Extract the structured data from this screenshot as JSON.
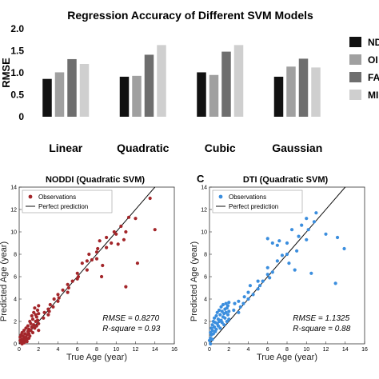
{
  "chart_data": [
    {
      "type": "bar",
      "title": "Regression Accuracy of Different SVM Models",
      "ylabel": "RMSE",
      "ylim": [
        0,
        2
      ],
      "yticks": [
        "0",
        "0.5",
        "1.0",
        "1.5",
        "2.0"
      ],
      "categories": [
        "Linear",
        "Quadratic",
        "Cubic",
        "Gaussian"
      ],
      "legend_placement": "right",
      "series": [
        {
          "name": "ND",
          "color": "#111111",
          "values": [
            0.86,
            0.91,
            1.01,
            0.91
          ]
        },
        {
          "name": "OI",
          "color": "#a0a0a0",
          "values": [
            1.01,
            0.93,
            0.95,
            1.14
          ]
        },
        {
          "name": "FA",
          "color": "#6e6e6e",
          "values": [
            1.31,
            1.41,
            1.48,
            1.32
          ]
        },
        {
          "name": "MI",
          "color": "#cfcfcf",
          "values": [
            1.2,
            1.63,
            1.63,
            1.12
          ]
        }
      ]
    },
    {
      "type": "scatter",
      "title": "NODDI  (Quadratic SVM)",
      "xlabel": "True Age (year)",
      "ylabel": "Predicted Age (year)",
      "xlim": [
        0,
        16
      ],
      "ylim": [
        0,
        14
      ],
      "xticks": [
        0,
        2,
        4,
        6,
        8,
        10,
        12,
        14,
        16
      ],
      "yticks": [
        0,
        2,
        4,
        6,
        8,
        10,
        12,
        14
      ],
      "point_color": "#a3262a",
      "legend": [
        "Observations",
        "Perfect prediction"
      ],
      "legend_placement": "top-left",
      "stats": [
        "RMSE = 0.8270",
        "R-square = 0.93"
      ],
      "points": [
        [
          0.1,
          0.3
        ],
        [
          0.1,
          0.6
        ],
        [
          0.2,
          0.2
        ],
        [
          0.2,
          0.8
        ],
        [
          0.3,
          0.4
        ],
        [
          0.3,
          1.0
        ],
        [
          0.4,
          0.2
        ],
        [
          0.4,
          0.7
        ],
        [
          0.5,
          0.5
        ],
        [
          0.5,
          1.2
        ],
        [
          0.6,
          0.3
        ],
        [
          0.6,
          0.9
        ],
        [
          0.7,
          0.6
        ],
        [
          0.7,
          1.4
        ],
        [
          0.8,
          0.8
        ],
        [
          0.8,
          0.4
        ],
        [
          0.9,
          1.1
        ],
        [
          0.9,
          1.6
        ],
        [
          1.0,
          0.9
        ],
        [
          1.0,
          1.3
        ],
        [
          1.1,
          0.7
        ],
        [
          1.1,
          2.0
        ],
        [
          1.2,
          1.2
        ],
        [
          1.2,
          1.8
        ],
        [
          1.3,
          1.5
        ],
        [
          1.3,
          2.5
        ],
        [
          1.4,
          1.0
        ],
        [
          1.4,
          2.2
        ],
        [
          1.5,
          1.7
        ],
        [
          1.5,
          2.8
        ],
        [
          1.6,
          1.4
        ],
        [
          1.6,
          3.2
        ],
        [
          1.7,
          2.0
        ],
        [
          1.7,
          2.6
        ],
        [
          1.8,
          1.6
        ],
        [
          1.8,
          2.4
        ],
        [
          1.9,
          2.1
        ],
        [
          1.9,
          3.0
        ],
        [
          2.0,
          1.8
        ],
        [
          2.0,
          2.7
        ],
        [
          2.0,
          3.4
        ],
        [
          0.2,
          0.1
        ],
        [
          0.3,
          0.0
        ],
        [
          0.5,
          0.1
        ],
        [
          0.8,
          0.2
        ],
        [
          1.0,
          0.5
        ],
        [
          2.0,
          1.2
        ],
        [
          2.5,
          2.3
        ],
        [
          2.6,
          2.8
        ],
        [
          3.0,
          2.6
        ],
        [
          3.0,
          3.1
        ],
        [
          3.1,
          2.9
        ],
        [
          3.2,
          3.5
        ],
        [
          3.5,
          3.3
        ],
        [
          3.6,
          4.0
        ],
        [
          4.0,
          3.8
        ],
        [
          4.0,
          4.4
        ],
        [
          4.1,
          4.1
        ],
        [
          4.5,
          4.8
        ],
        [
          5.0,
          4.6
        ],
        [
          5.0,
          5.3
        ],
        [
          5.1,
          5.0
        ],
        [
          5.5,
          5.6
        ],
        [
          6.0,
          5.8
        ],
        [
          6.0,
          6.3
        ],
        [
          6.1,
          6.0
        ],
        [
          6.5,
          7.2
        ],
        [
          7.0,
          6.6
        ],
        [
          7.0,
          7.4
        ],
        [
          7.2,
          8.0
        ],
        [
          7.5,
          7.5
        ],
        [
          8.0,
          7.6
        ],
        [
          8.0,
          8.2
        ],
        [
          8.1,
          8.5
        ],
        [
          8.3,
          9.2
        ],
        [
          8.5,
          6.0
        ],
        [
          8.6,
          7.0
        ],
        [
          9.0,
          8.6
        ],
        [
          9.0,
          9.5
        ],
        [
          9.5,
          9.0
        ],
        [
          9.8,
          10.0
        ],
        [
          10.0,
          9.8
        ],
        [
          10.2,
          8.9
        ],
        [
          10.5,
          10.5
        ],
        [
          10.8,
          9.3
        ],
        [
          11.0,
          10.0
        ],
        [
          11.0,
          5.1
        ],
        [
          11.3,
          11.3
        ],
        [
          12.0,
          11.2
        ],
        [
          12.2,
          7.2
        ],
        [
          13.5,
          13.0
        ],
        [
          14.0,
          10.2
        ]
      ]
    },
    {
      "type": "scatter",
      "panel_label": "C",
      "title": "DTI  (Quadratic SVM)",
      "xlabel": "True Age (year)",
      "ylabel": "Predicted Age (year)",
      "xlim": [
        0,
        16
      ],
      "ylim": [
        0,
        14
      ],
      "xticks": [
        0,
        2,
        4,
        6,
        8,
        10,
        12,
        14,
        16
      ],
      "yticks": [
        0,
        2,
        4,
        6,
        8,
        10,
        12,
        14
      ],
      "point_color": "#3b8ede",
      "legend": [
        "Observations",
        "Perfect prediction"
      ],
      "legend_placement": "top-left",
      "stats": [
        "RMSE = 1.1325",
        "R-square = 0.88"
      ],
      "points": [
        [
          0.1,
          0.5
        ],
        [
          0.1,
          1.0
        ],
        [
          0.2,
          1.4
        ],
        [
          0.2,
          0.8
        ],
        [
          0.3,
          1.7
        ],
        [
          0.3,
          1.2
        ],
        [
          0.4,
          2.0
        ],
        [
          0.4,
          0.9
        ],
        [
          0.5,
          1.5
        ],
        [
          0.5,
          2.3
        ],
        [
          0.6,
          1.1
        ],
        [
          0.6,
          1.9
        ],
        [
          0.7,
          2.5
        ],
        [
          0.7,
          1.3
        ],
        [
          0.8,
          1.8
        ],
        [
          0.8,
          2.8
        ],
        [
          0.9,
          1.6
        ],
        [
          0.9,
          2.2
        ],
        [
          1.0,
          2.0
        ],
        [
          1.0,
          3.0
        ],
        [
          1.1,
          1.4
        ],
        [
          1.1,
          2.6
        ],
        [
          1.2,
          2.1
        ],
        [
          1.2,
          3.3
        ],
        [
          1.3,
          1.9
        ],
        [
          1.3,
          2.9
        ],
        [
          1.4,
          2.4
        ],
        [
          1.4,
          3.5
        ],
        [
          1.5,
          2.7
        ],
        [
          1.5,
          1.7
        ],
        [
          1.6,
          3.1
        ],
        [
          1.6,
          2.3
        ],
        [
          1.7,
          2.8
        ],
        [
          1.7,
          3.6
        ],
        [
          1.8,
          2.0
        ],
        [
          1.8,
          3.2
        ],
        [
          1.9,
          2.6
        ],
        [
          1.9,
          3.4
        ],
        [
          2.0,
          2.9
        ],
        [
          2.0,
          3.7
        ],
        [
          2.0,
          2.2
        ],
        [
          0.0,
          0.3
        ],
        [
          0.1,
          0.0
        ],
        [
          0.3,
          0.4
        ],
        [
          2.5,
          3.0
        ],
        [
          2.6,
          3.6
        ],
        [
          3.0,
          2.8
        ],
        [
          3.0,
          3.8
        ],
        [
          3.2,
          3.3
        ],
        [
          3.5,
          3.6
        ],
        [
          3.6,
          4.2
        ],
        [
          4.0,
          4.0
        ],
        [
          4.0,
          4.6
        ],
        [
          4.2,
          5.2
        ],
        [
          4.5,
          4.4
        ],
        [
          5.0,
          4.9
        ],
        [
          5.0,
          5.6
        ],
        [
          5.2,
          5.2
        ],
        [
          5.5,
          5.6
        ],
        [
          6.0,
          6.2
        ],
        [
          6.0,
          6.8
        ],
        [
          6.2,
          5.9
        ],
        [
          6.5,
          6.4
        ],
        [
          6.0,
          9.4
        ],
        [
          6.5,
          9.0
        ],
        [
          7.0,
          7.4
        ],
        [
          7.0,
          8.8
        ],
        [
          7.2,
          9.2
        ],
        [
          7.5,
          7.9
        ],
        [
          8.0,
          8.0
        ],
        [
          8.0,
          9.0
        ],
        [
          8.2,
          7.2
        ],
        [
          8.5,
          10.2
        ],
        [
          8.8,
          6.6
        ],
        [
          9.0,
          8.3
        ],
        [
          9.2,
          9.6
        ],
        [
          9.5,
          10.6
        ],
        [
          10.0,
          9.3
        ],
        [
          10.0,
          11.2
        ],
        [
          10.2,
          10.2
        ],
        [
          10.5,
          6.3
        ],
        [
          10.8,
          10.9
        ],
        [
          11.0,
          11.7
        ],
        [
          12.0,
          9.8
        ],
        [
          13.0,
          5.4
        ],
        [
          13.2,
          9.5
        ],
        [
          13.9,
          8.5
        ]
      ]
    }
  ]
}
